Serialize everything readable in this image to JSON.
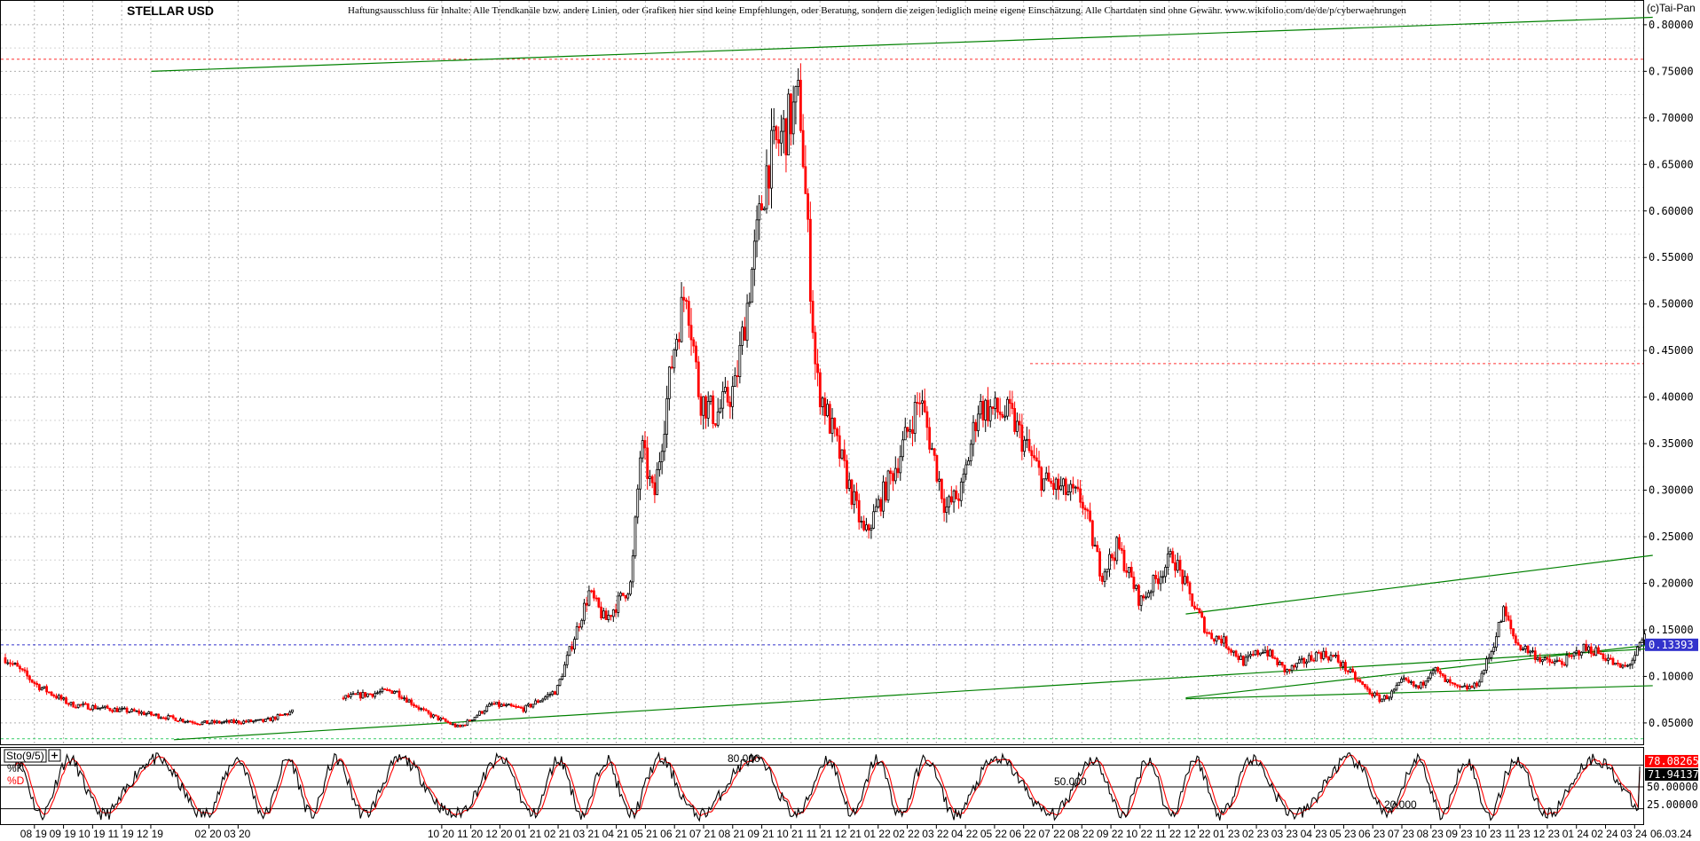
{
  "header": {
    "title": "STELLAR USD",
    "disclaimer": "Haftungsausschluss für Inhalte: Alle Trendkanäle bzw. andere Linien, oder Grafiken hier sind keine Empfehlungen, oder Beratung, sondern die zeigen lediglich meine eigene Einschätzung. Alle Chartdaten sind ohne Gewähr.  www.wikifolio.com/de/de/p/cyberwaehrungen",
    "copyright": "(c)Tai-Pan"
  },
  "colors": {
    "up": "#000000",
    "down": "#ff0000",
    "trendline": "#008000",
    "resistance": "#ff3333",
    "current_price_line": "#3333cc",
    "grid": "#b0b0b0",
    "stoch_k": "#000000",
    "stoch_d": "#ff0000",
    "badge_k_bg": "#ff0000",
    "badge_d_bg": "#000000"
  },
  "chart_data": [
    {
      "type": "candlestick",
      "title": "STELLAR USD",
      "y_ticks": [
        "0.80000",
        "0.75000",
        "0.70000",
        "0.65000",
        "0.60000",
        "0.55000",
        "0.50000",
        "0.45000",
        "0.40000",
        "0.35000",
        "0.30000",
        "0.25000",
        "0.20000",
        "0.15000",
        "0.10000",
        "0.05000"
      ],
      "ylim": [
        0.028,
        0.818
      ],
      "grid": true,
      "current_price_label": "0.13393",
      "current_price": 0.13393,
      "x_labels": [
        "08 19",
        "09 19",
        "10 19",
        "11 19",
        "12 19",
        "02 20",
        "03 20",
        "10 20",
        "11 20",
        "12 20",
        "01 21",
        "02 21",
        "03 21",
        "04 21",
        "05 21",
        "06 21",
        "07 21",
        "08 21",
        "09 21",
        "10 21",
        "11 21",
        "12 21",
        "01 22",
        "02 22",
        "03 22",
        "04 22",
        "05 22",
        "06 22",
        "07 22",
        "08 22",
        "09 22",
        "10 22",
        "11 22",
        "12 22",
        "01 23",
        "02 23",
        "03 23",
        "04 23",
        "05 23",
        "06 23",
        "07 23",
        "08 23",
        "09 23",
        "10 23",
        "11 23",
        "12 23",
        "01 24",
        "02 24",
        "03 24"
      ],
      "last_date_label": "06.03.24",
      "series_anchors": {
        "t": [
          0,
          1,
          2,
          4,
          6,
          8,
          10,
          12,
          13,
          14,
          15,
          16,
          16.5,
          17,
          18,
          18.5,
          19.3,
          19.6,
          20,
          20.6,
          21,
          21.4,
          21.9,
          22.5,
          23.5,
          24.5,
          25,
          25.8,
          26.5,
          27.5,
          28.2,
          29,
          29.5,
          30,
          31,
          32,
          33.2,
          33.8,
          34.3,
          35,
          35.6,
          36,
          36.6,
          37.1,
          37.5,
          38.2,
          38.8,
          39.5,
          40.5,
          41,
          42,
          42.4,
          42.7,
          43.1,
          43.6,
          44,
          44.4,
          44.8,
          45.3,
          45.5,
          45.8,
          46.2,
          46.6,
          47.1,
          47.5,
          48,
          48.3,
          48.6,
          49,
          49.4,
          49.7,
          50,
          50.3,
          50.6
        ],
        "v": [
          0.12,
          0.09,
          0.07,
          0.062,
          0.05,
          0.052,
          0.075,
          0.085,
          0.06,
          0.045,
          0.07,
          0.065,
          0.075,
          0.085,
          0.19,
          0.16,
          0.2,
          0.35,
          0.29,
          0.45,
          0.52,
          0.4,
          0.38,
          0.41,
          0.65,
          0.72,
          0.42,
          0.33,
          0.25,
          0.33,
          0.4,
          0.28,
          0.3,
          0.39,
          0.38,
          0.31,
          0.29,
          0.21,
          0.24,
          0.18,
          0.21,
          0.23,
          0.18,
          0.145,
          0.14,
          0.115,
          0.13,
          0.105,
          0.125,
          0.12,
          0.085,
          0.075,
          0.08,
          0.095,
          0.087,
          0.11,
          0.095,
          0.086,
          0.089,
          0.1,
          0.125,
          0.17,
          0.135,
          0.125,
          0.115,
          0.115,
          0.12,
          0.13,
          0.128,
          0.12,
          0.11,
          0.11,
          0.125,
          0.145
        ]
      },
      "annotations": {
        "resistance_levels": [
          0.763,
          0.436
        ],
        "trendlines": [
          {
            "t": [
              4.5,
              50.8
            ],
            "v": [
              0.75,
              0.808
            ]
          },
          {
            "t": [
              5.2,
              50.8
            ],
            "v": [
              0.032,
              0.13
            ]
          },
          {
            "t": [
              36.4,
              50.8
            ],
            "v": [
              0.076,
              0.09
            ]
          },
          {
            "t": [
              36.4,
              50.8
            ],
            "v": [
              0.077,
              0.134
            ]
          },
          {
            "t": [
              36.4,
              50.8
            ],
            "v": [
              0.167,
              0.23
            ]
          }
        ],
        "bottom_line": 0.033
      }
    },
    {
      "type": "line",
      "title": "Sto(9/5)",
      "series": [
        {
          "name": "%K",
          "last_value": "78.08265"
        },
        {
          "name": "%D",
          "last_value": "71.94137"
        }
      ],
      "ylim": [
        0,
        100
      ],
      "y_ticks": [
        "50.00000",
        "25.00000"
      ],
      "levels": [
        {
          "value": 80,
          "label": "80.000"
        },
        {
          "value": 50,
          "label": "50.000"
        },
        {
          "value": 20,
          "label": "20.000"
        }
      ]
    }
  ]
}
